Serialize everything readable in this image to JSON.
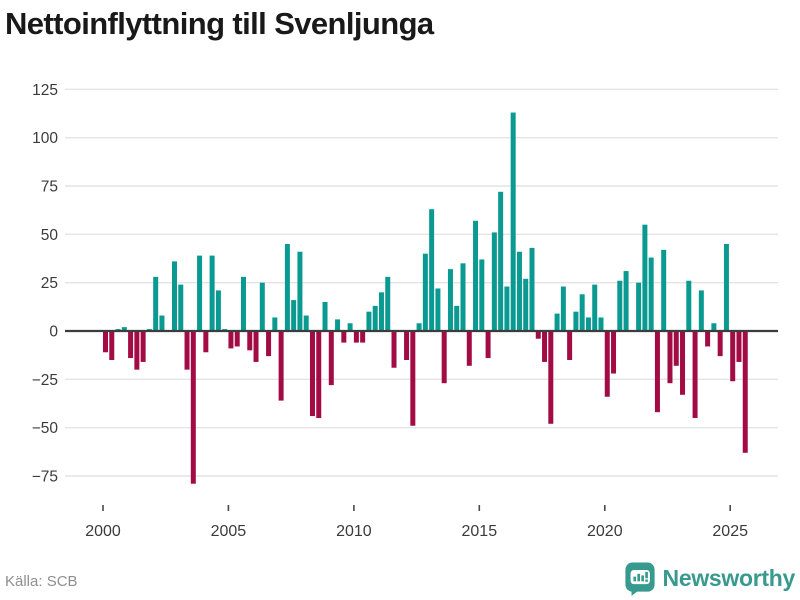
{
  "title": "Nettoinflyttning till Svenljunga",
  "source": "Källa: SCB",
  "logo": {
    "text": "Newsworthy"
  },
  "colors": {
    "positive": "#0a9a91",
    "negative": "#a30b45",
    "grid": "#e4e4e4",
    "axis": "#3c3c3c",
    "tick_mark": "#4a4a4a",
    "tick_text": "#3b3b3b",
    "title_text": "#191919",
    "source_text": "#8f8f8f",
    "logo": "#38998f",
    "background": "#ffffff"
  },
  "chart_data": {
    "type": "bar",
    "title": "Nettoinflyttning till Svenljunga",
    "xlabel": "",
    "ylabel": "",
    "frequency": "quarterly",
    "x_start": "2000-Q1",
    "x_end": "2025-Q3",
    "x_tick_labels": [
      "2000",
      "2005",
      "2010",
      "2015",
      "2020",
      "2025"
    ],
    "y_ticks": [
      125,
      100,
      75,
      50,
      25,
      0,
      -25,
      -50,
      -75
    ],
    "ylim": [
      -90,
      138
    ],
    "grid": true,
    "legend": "none",
    "values": [
      -11,
      -15,
      1,
      2,
      -14,
      -20,
      -16,
      1,
      28,
      8,
      0,
      36,
      24,
      -20,
      -79,
      39,
      -11,
      39,
      21,
      1,
      -9,
      -8,
      28,
      -10,
      -16,
      25,
      -13,
      7,
      -36,
      45,
      16,
      41,
      8,
      -44,
      -45,
      15,
      -28,
      6,
      -6,
      4,
      -6,
      -6,
      10,
      13,
      20,
      28,
      -19,
      0,
      -15,
      -49,
      4,
      40,
      63,
      22,
      -27,
      32,
      13,
      35,
      -18,
      57,
      37,
      -14,
      51,
      72,
      23,
      113,
      41,
      27,
      43,
      -4,
      -16,
      -48,
      9,
      23,
      -15,
      10,
      19,
      7,
      24,
      7,
      -34,
      -22,
      26,
      31,
      0,
      25,
      55,
      38,
      -42,
      42,
      -27,
      -18,
      -33,
      26,
      -45,
      21,
      -8,
      4,
      -13,
      45,
      -26,
      -16,
      -63
    ]
  }
}
